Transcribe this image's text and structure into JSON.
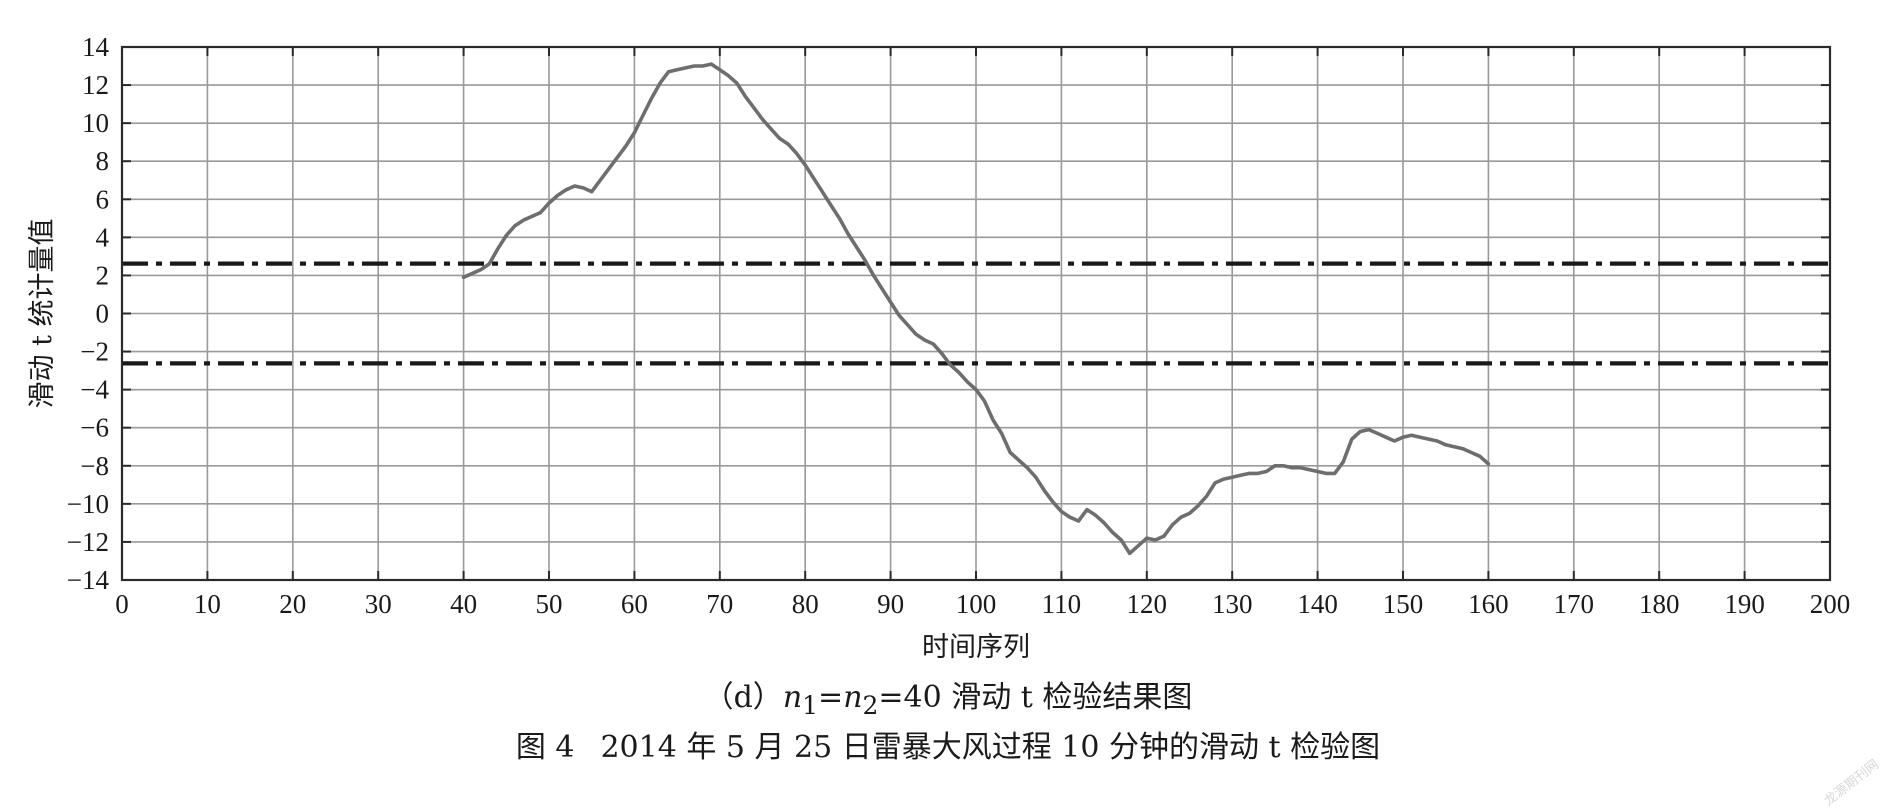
{
  "chart_data": {
    "type": "line",
    "xlabel": "时间序列",
    "ylabel": "滑动 t 统计量值",
    "xlim": [
      0,
      200
    ],
    "ylim": [
      -14,
      14
    ],
    "xticks": [
      0,
      10,
      20,
      30,
      40,
      50,
      60,
      70,
      80,
      90,
      100,
      110,
      120,
      130,
      140,
      150,
      160,
      170,
      180,
      190,
      200
    ],
    "yticks": [
      -14,
      -12,
      -10,
      -8,
      -6,
      -4,
      -2,
      0,
      2,
      4,
      6,
      8,
      10,
      12,
      14
    ],
    "grid": true,
    "colors": {
      "series": "#6e6e6e",
      "threshold": "#1a1a1a",
      "grid": "#9a9a9a",
      "frame": "#2a2a2a"
    },
    "thresholds": [
      2.62,
      -2.62
    ],
    "series": [
      {
        "x": [
          40,
          41,
          42,
          43,
          44,
          45,
          46,
          47,
          48,
          49,
          50,
          51,
          52,
          53,
          54,
          55,
          56,
          57,
          58,
          59,
          60,
          61,
          62,
          63,
          64,
          65,
          66,
          67,
          68,
          69,
          70,
          71,
          72,
          73,
          74,
          75,
          76,
          77,
          78,
          79,
          80,
          81,
          82,
          83,
          84,
          85,
          86,
          87,
          88,
          89,
          90,
          91,
          92,
          93,
          94,
          95,
          96,
          97,
          98,
          99,
          100,
          101,
          102,
          103,
          104,
          105,
          106,
          107,
          108,
          109,
          110,
          111,
          112,
          113,
          114,
          115,
          116,
          117,
          118,
          119,
          120,
          121,
          122,
          123,
          124,
          125,
          126,
          127,
          128,
          129,
          130,
          131,
          132,
          133,
          134,
          135,
          136,
          137,
          138,
          139,
          140,
          141,
          142,
          143,
          144,
          145,
          146,
          147,
          148,
          149,
          150,
          151,
          152,
          153,
          154,
          155,
          156,
          157,
          158,
          159,
          160
        ],
        "values": [
          1.9,
          2.1,
          2.3,
          2.6,
          3.4,
          4.1,
          4.6,
          4.9,
          5.1,
          5.3,
          5.8,
          6.2,
          6.5,
          6.7,
          6.6,
          6.4,
          7.0,
          7.6,
          8.2,
          8.8,
          9.5,
          10.4,
          11.3,
          12.1,
          12.7,
          12.8,
          12.9,
          13.0,
          13.0,
          13.1,
          12.8,
          12.5,
          12.1,
          11.4,
          10.8,
          10.2,
          9.7,
          9.2,
          8.9,
          8.4,
          7.8,
          7.1,
          6.4,
          5.7,
          5.0,
          4.2,
          3.5,
          2.8,
          2.0,
          1.3,
          0.6,
          -0.1,
          -0.6,
          -1.1,
          -1.4,
          -1.6,
          -2.1,
          -2.7,
          -3.1,
          -3.6,
          -4.0,
          -4.6,
          -5.6,
          -6.3,
          -7.3,
          -7.7,
          -8.1,
          -8.6,
          -9.3,
          -9.9,
          -10.4,
          -10.7,
          -10.9,
          -10.3,
          -10.6,
          -11.0,
          -11.5,
          -11.9,
          -12.6,
          -12.2,
          -11.8,
          -11.9,
          -11.7,
          -11.1,
          -10.7,
          -10.5,
          -10.1,
          -9.6,
          -8.9,
          -8.7,
          -8.6,
          -8.5,
          -8.4,
          -8.4,
          -8.3,
          -8.0,
          -8.0,
          -8.1,
          -8.1,
          -8.2,
          -8.3,
          -8.4,
          -8.4,
          -7.8,
          -6.6,
          -6.2,
          -6.1,
          -6.3,
          -6.5,
          -6.7,
          -6.5,
          -6.4,
          -6.5,
          -6.6,
          -6.7,
          -6.9,
          -7.0,
          -7.1,
          -7.3,
          -7.5,
          -7.9
        ]
      }
    ]
  },
  "captions": {
    "sub_prefix": "（d）",
    "sub_n1": "n",
    "sub_n1_sub": "1",
    "sub_eq1": "=",
    "sub_n2": "n",
    "sub_n2_sub": "2",
    "sub_rest": "=40 滑动 t 检验结果图",
    "figure_number": "图 4",
    "figure_title": "2014 年 5 月 25 日雷暴大风过程 10 分钟的滑动 t 检验图"
  },
  "watermark": "龙源期刊网"
}
